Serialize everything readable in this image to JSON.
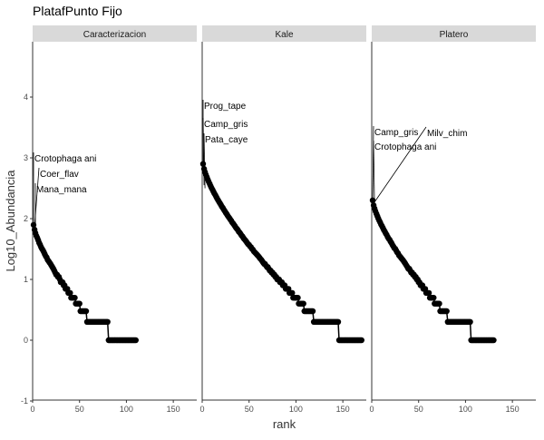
{
  "chart_data": {
    "type": "scatter",
    "title": "PlatafPunto Fijo",
    "xlabel": "rank",
    "ylabel": "Log10_Abundancia",
    "xlim": [
      0,
      175
    ],
    "ylim": [
      -1,
      5
    ],
    "x_ticks": [
      0,
      50,
      100,
      150
    ],
    "y_ticks": [
      -1,
      0,
      1,
      2,
      3,
      4
    ],
    "grid": false,
    "panels": [
      {
        "name": "Caracterizacion",
        "n_species": 110,
        "max_log": 1.9,
        "n_nonsingleton": 80,
        "labels": [
          {
            "text": "Crotophaga ani",
            "rank": 1,
            "value": 1.9
          },
          {
            "text": "Coer_flav",
            "rank": 2,
            "value": 1.85
          },
          {
            "text": "Mana_mana",
            "rank": 3,
            "value": 1.75
          }
        ]
      },
      {
        "name": "Kale",
        "n_species": 170,
        "max_log": 2.9,
        "n_nonsingleton": 145,
        "labels": [
          {
            "text": "Prog_tape",
            "rank": 1,
            "value": 2.9
          },
          {
            "text": "Camp_gris",
            "rank": 2,
            "value": 2.55
          },
          {
            "text": "Pata_caye",
            "rank": 3,
            "value": 2.5
          }
        ]
      },
      {
        "name": "Platero",
        "n_species": 130,
        "max_log": 2.3,
        "n_nonsingleton": 105,
        "labels": [
          {
            "text": "Camp_gris",
            "rank": 1,
            "value": 2.3
          },
          {
            "text": "Milv_chim",
            "rank": 2,
            "value": 2.25
          },
          {
            "text": "Crotophaga ani",
            "rank": 3,
            "value": 2.2
          }
        ]
      }
    ]
  }
}
